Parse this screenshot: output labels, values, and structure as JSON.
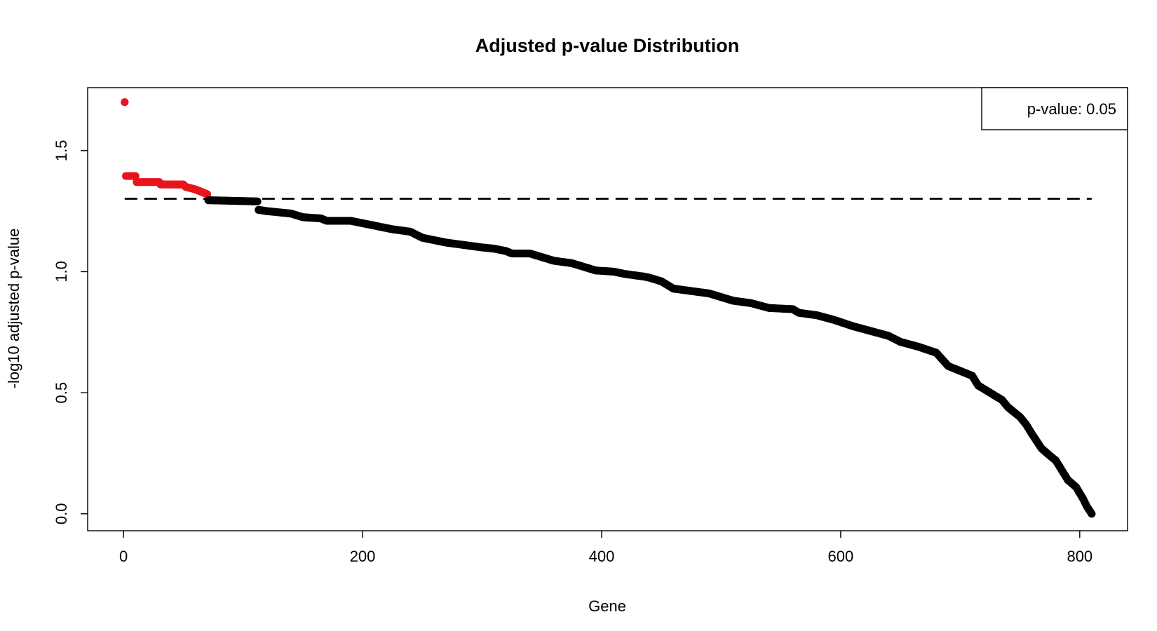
{
  "chart_data": {
    "type": "scatter",
    "title": "Adjusted p-value Distribution",
    "xlabel": "Gene",
    "ylabel": "-log10 adjusted p-value",
    "xlim": [
      -30,
      840
    ],
    "ylim": [
      -0.07,
      1.76
    ],
    "x_ticks": [
      0,
      200,
      400,
      600,
      800
    ],
    "x_tick_labels": [
      "0",
      "200",
      "400",
      "600",
      "800"
    ],
    "y_ticks": [
      0.0,
      0.5,
      1.0,
      1.5
    ],
    "y_tick_labels": [
      "0.0",
      "0.5",
      "1.0",
      "1.5"
    ],
    "grid": false,
    "legend": {
      "position": "top-right",
      "text": "p-value: 0.05"
    },
    "threshold": {
      "value": 1.30103,
      "style": "dashed",
      "color": "#000000"
    },
    "colors": {
      "significant": "#e8141c",
      "not_significant": "#000000"
    },
    "n_points": 810,
    "curve_knots": [
      [
        1,
        1.7
      ],
      [
        2,
        1.395
      ],
      [
        10,
        1.395
      ],
      [
        11,
        1.37
      ],
      [
        30,
        1.37
      ],
      [
        31,
        1.36
      ],
      [
        50,
        1.36
      ],
      [
        52,
        1.35
      ],
      [
        60,
        1.34
      ],
      [
        65,
        1.33
      ],
      [
        70,
        1.32
      ],
      [
        71,
        1.295
      ],
      [
        112,
        1.29
      ],
      [
        113,
        1.255
      ],
      [
        120,
        1.25
      ],
      [
        140,
        1.24
      ],
      [
        150,
        1.225
      ],
      [
        165,
        1.22
      ],
      [
        170,
        1.21
      ],
      [
        190,
        1.21
      ],
      [
        200,
        1.2
      ],
      [
        210,
        1.19
      ],
      [
        225,
        1.175
      ],
      [
        240,
        1.165
      ],
      [
        250,
        1.14
      ],
      [
        260,
        1.13
      ],
      [
        270,
        1.12
      ],
      [
        285,
        1.11
      ],
      [
        300,
        1.1
      ],
      [
        310,
        1.095
      ],
      [
        320,
        1.085
      ],
      [
        325,
        1.075
      ],
      [
        340,
        1.075
      ],
      [
        350,
        1.06
      ],
      [
        360,
        1.045
      ],
      [
        375,
        1.035
      ],
      [
        385,
        1.02
      ],
      [
        395,
        1.005
      ],
      [
        410,
        1.0
      ],
      [
        420,
        0.99
      ],
      [
        435,
        0.98
      ],
      [
        440,
        0.975
      ],
      [
        450,
        0.96
      ],
      [
        460,
        0.93
      ],
      [
        475,
        0.92
      ],
      [
        490,
        0.91
      ],
      [
        500,
        0.895
      ],
      [
        510,
        0.88
      ],
      [
        525,
        0.87
      ],
      [
        540,
        0.85
      ],
      [
        560,
        0.845
      ],
      [
        565,
        0.83
      ],
      [
        580,
        0.82
      ],
      [
        595,
        0.8
      ],
      [
        610,
        0.775
      ],
      [
        625,
        0.755
      ],
      [
        640,
        0.735
      ],
      [
        650,
        0.71
      ],
      [
        665,
        0.69
      ],
      [
        680,
        0.665
      ],
      [
        690,
        0.61
      ],
      [
        700,
        0.59
      ],
      [
        710,
        0.57
      ],
      [
        715,
        0.53
      ],
      [
        725,
        0.5
      ],
      [
        735,
        0.47
      ],
      [
        740,
        0.44
      ],
      [
        750,
        0.4
      ],
      [
        755,
        0.37
      ],
      [
        760,
        0.33
      ],
      [
        768,
        0.27
      ],
      [
        775,
        0.24
      ],
      [
        780,
        0.22
      ],
      [
        785,
        0.18
      ],
      [
        790,
        0.14
      ],
      [
        797,
        0.11
      ],
      [
        803,
        0.06
      ],
      [
        806,
        0.03
      ],
      [
        810,
        0.0
      ]
    ],
    "series": [
      {
        "name": "",
        "color": "#e8141c",
        "x_range": [
          1,
          70
        ]
      },
      {
        "name": "",
        "color": "#000000",
        "x_range": [
          71,
          810
        ]
      }
    ]
  }
}
